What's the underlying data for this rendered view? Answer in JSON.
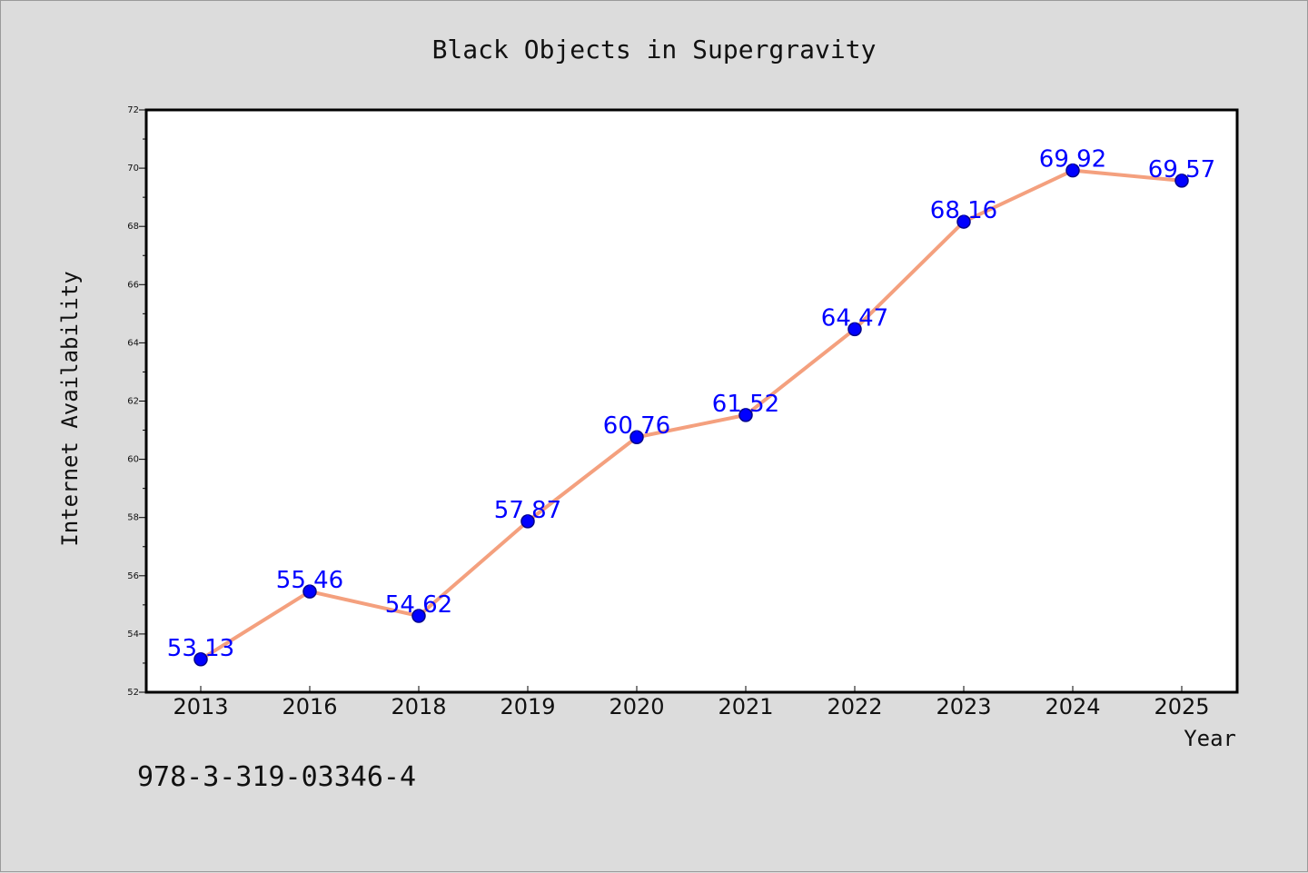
{
  "chart_data": {
    "type": "line",
    "title": "Black Objects in Supergravity",
    "xlabel": "Year",
    "ylabel": "Internet Availability",
    "categories": [
      "2013",
      "2016",
      "2018",
      "2019",
      "2020",
      "2021",
      "2022",
      "2023",
      "2024",
      "2025"
    ],
    "series": [
      {
        "values": [
          53.13,
          55.46,
          54.62,
          57.87,
          60.76,
          61.52,
          64.47,
          68.16,
          69.92,
          69.57
        ]
      }
    ],
    "data_labels": [
      "53.13",
      "55.46",
      "54.62",
      "57.87",
      "60.76",
      "61.52",
      "64.47",
      "68.16",
      "69.92",
      "69.57"
    ],
    "ylim": [
      52,
      72
    ],
    "yticks": [
      52,
      54,
      56,
      58,
      60,
      62,
      64,
      66,
      68,
      70,
      72
    ],
    "grid": false,
    "legend": "none",
    "colors": {
      "line": "#f4a07e",
      "marker": "#0000ff",
      "marker_edge": "#00008b",
      "data_label": "#0000ff",
      "background": "#dcdcdc",
      "plot_background": "#ffffff"
    }
  },
  "annotation": {
    "isbn": "978-3-319-03346-4"
  }
}
